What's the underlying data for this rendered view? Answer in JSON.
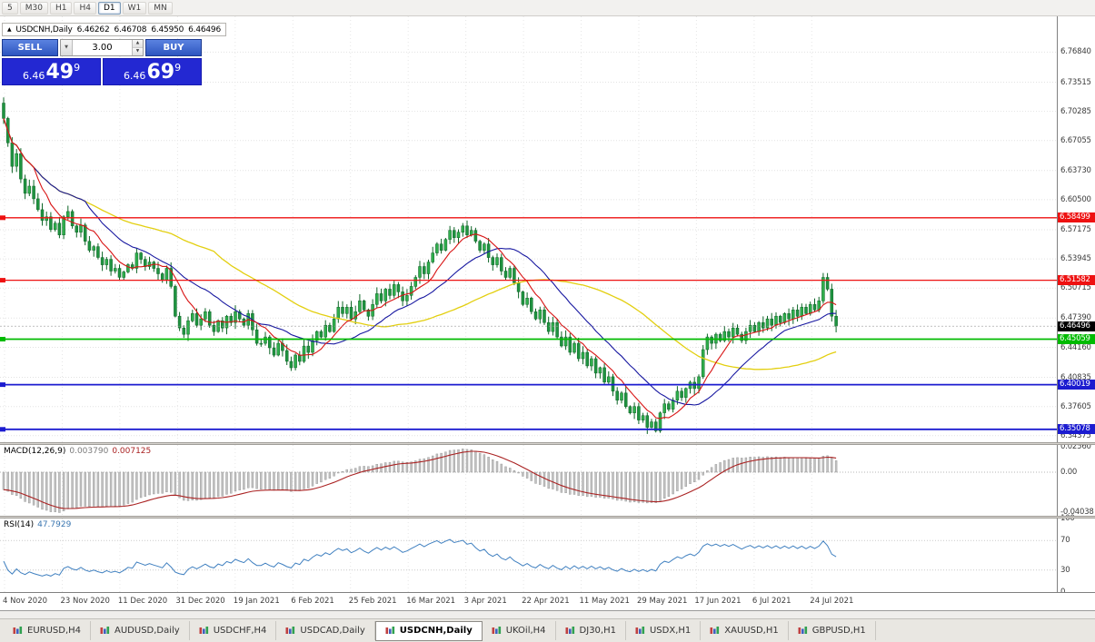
{
  "toolbar": {
    "buttons": [
      {
        "label": "5",
        "active": false
      },
      {
        "label": "M30",
        "active": false
      },
      {
        "label": "H1",
        "active": false
      },
      {
        "label": "H4",
        "active": false
      },
      {
        "label": "D1",
        "active": true
      },
      {
        "label": "W1",
        "active": false
      },
      {
        "label": "MN",
        "active": false
      }
    ]
  },
  "icons": {
    "collapse_arrow": "▲",
    "dropdown": "▼",
    "spin_up": "▲",
    "spin_down": "▼"
  },
  "ohlc_header": {
    "symbol": "USDCNH,Daily",
    "open": "6.46262",
    "high": "6.46708",
    "low": "6.45950",
    "close": "6.46496"
  },
  "trade_widget": {
    "sell_label": "SELL",
    "buy_label": "BUY",
    "volume": "3.00",
    "sell_price": {
      "prefix": "6.46",
      "big": "49",
      "sup": "9"
    },
    "buy_price": {
      "prefix": "6.46",
      "big": "69",
      "sup": "9"
    }
  },
  "price_axis": {
    "ticks": [
      "6.76840",
      "6.73515",
      "6.70285",
      "6.67055",
      "6.63730",
      "6.60500",
      "6.57175",
      "6.53945",
      "6.50715",
      "6.47390",
      "6.44160",
      "6.40835",
      "6.37605",
      "6.34375"
    ],
    "current": {
      "label": "6.46496",
      "bg": "#000000",
      "fg": "#ffffff"
    }
  },
  "levels": [
    {
      "label": "6.58499",
      "color": "#ee1111",
      "thickness": 1.3
    },
    {
      "label": "6.51582",
      "color": "#ee1111",
      "thickness": 1.3
    },
    {
      "label": "6.45059",
      "color": "#00bb00",
      "thickness": 1.8
    },
    {
      "label": "6.40019",
      "color": "#1c1cd0",
      "thickness": 1.8
    },
    {
      "label": "6.35078",
      "color": "#1c1cd0",
      "thickness": 1.8
    }
  ],
  "macd_panel": {
    "title": "MACD(12,26,9)",
    "value_main": "0.003790",
    "value_signal": "0.007125",
    "ticks": [
      "0.02560",
      "0.00",
      "-0.04038"
    ]
  },
  "rsi_panel": {
    "title": "RSI(14)",
    "value": "47.7929",
    "ticks": [
      "100",
      "70",
      "30",
      "0"
    ]
  },
  "date_axis": {
    "labels": [
      "4 Nov 2020",
      "23 Nov 2020",
      "11 Dec 2020",
      "31 Dec 2020",
      "19 Jan 2021",
      "6 Feb 2021",
      "25 Feb 2021",
      "16 Mar 2021",
      "3 Apr 2021",
      "22 Apr 2021",
      "11 May 2021",
      "29 May 2021",
      "17 Jun 2021",
      "6 Jul 2021",
      "24 Jul 2021"
    ]
  },
  "tabs": {
    "items": [
      {
        "label": "EURUSD,H4",
        "active": false
      },
      {
        "label": "AUDUSD,Daily",
        "active": false
      },
      {
        "label": "USDCHF,H4",
        "active": false
      },
      {
        "label": "USDCAD,Daily",
        "active": false
      },
      {
        "label": "USDCNH,Daily",
        "active": true
      },
      {
        "label": "UKOil,H4",
        "active": false
      },
      {
        "label": "DJ30,H1",
        "active": false
      },
      {
        "label": "USDX,H1",
        "active": false
      },
      {
        "label": "XAUUSD,H1",
        "active": false
      },
      {
        "label": "GBPUSD,H1",
        "active": false
      }
    ]
  },
  "chart_data": {
    "type": "candlestick",
    "symbol": "USDCNH",
    "timeframe": "Daily",
    "y_range": [
      6.3365,
      6.808
    ],
    "x_first_label": "4 Nov 2020",
    "x_last_label": "24 Jul 2021",
    "closes": [
      6.695,
      6.668,
      6.642,
      6.656,
      6.628,
      6.612,
      6.62,
      6.606,
      6.594,
      6.582,
      6.586,
      6.572,
      6.579,
      6.566,
      6.586,
      6.592,
      6.576,
      6.569,
      6.577,
      6.559,
      6.549,
      6.553,
      6.541,
      6.533,
      6.539,
      6.526,
      6.529,
      6.519,
      6.525,
      6.533,
      6.529,
      6.546,
      6.539,
      6.531,
      6.536,
      6.529,
      6.523,
      6.516,
      6.529,
      6.509,
      6.476,
      6.463,
      6.456,
      6.471,
      6.479,
      6.466,
      6.473,
      6.481,
      6.466,
      6.459,
      6.471,
      6.463,
      6.476,
      6.469,
      6.481,
      6.473,
      6.466,
      6.479,
      6.461,
      6.446,
      6.446,
      6.453,
      6.441,
      6.433,
      6.446,
      6.438,
      6.426,
      6.419,
      6.433,
      6.426,
      6.443,
      6.436,
      6.449,
      6.459,
      6.453,
      6.466,
      6.459,
      6.473,
      6.486,
      6.479,
      6.486,
      6.473,
      6.481,
      6.493,
      6.483,
      6.476,
      6.489,
      6.501,
      6.493,
      6.506,
      6.499,
      6.511,
      6.503,
      6.493,
      6.499,
      6.509,
      6.519,
      6.531,
      6.523,
      6.536,
      6.546,
      6.556,
      6.549,
      6.561,
      6.571,
      6.563,
      6.569,
      6.576,
      6.566,
      6.571,
      6.559,
      6.549,
      6.556,
      6.541,
      6.533,
      6.541,
      6.526,
      6.519,
      6.529,
      6.513,
      6.503,
      6.489,
      6.496,
      6.481,
      6.473,
      6.483,
      6.469,
      6.459,
      6.469,
      6.453,
      6.443,
      6.453,
      6.436,
      6.446,
      6.429,
      6.436,
      6.421,
      6.429,
      6.413,
      6.419,
      6.403,
      6.409,
      6.393,
      6.383,
      6.391,
      6.376,
      6.369,
      6.376,
      6.361,
      6.366,
      6.353,
      6.359,
      6.349,
      6.369,
      6.379,
      6.373,
      6.383,
      6.393,
      6.386,
      6.396,
      6.403,
      6.396,
      6.409,
      6.439,
      6.453,
      6.446,
      6.456,
      6.449,
      6.459,
      6.453,
      6.463,
      6.456,
      6.449,
      6.459,
      6.466,
      6.459,
      6.469,
      6.463,
      6.473,
      6.466,
      6.476,
      6.469,
      6.479,
      6.473,
      6.483,
      6.476,
      6.486,
      6.479,
      6.489,
      6.483,
      6.493,
      6.519,
      6.506,
      6.476,
      6.46496
    ],
    "overlays": {
      "ma_fast_period": 8,
      "ma_mid_period": 20,
      "ma_slow_period": 50
    },
    "macd": {
      "fast": 12,
      "slow": 26,
      "signal": 9
    },
    "rsi_period": 14,
    "colors": {
      "bull": "#2fae4c",
      "bear": "#1f9340",
      "outline": "#0d6526",
      "ma_fast": "#d81414",
      "ma_mid": "#1717a0",
      "ma_slow": "#e3cf10",
      "macd_hist": "#c2c2c2",
      "macd_signal": "#aa2222",
      "rsi_line": "#4080c0",
      "level_red": "#ee1111",
      "level_green": "#00bb00",
      "level_blue": "#1c1cd0"
    }
  }
}
